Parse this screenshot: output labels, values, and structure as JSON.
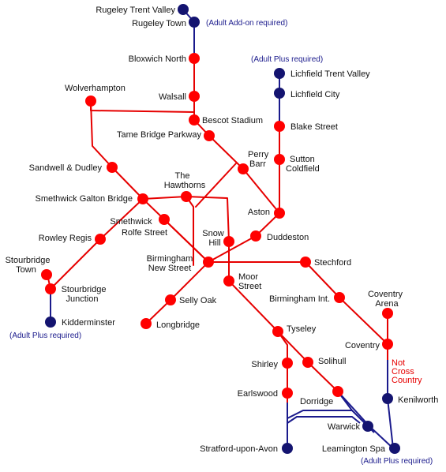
{
  "colors": {
    "red_line": "#e60000",
    "blue_line": "#1a1a8c",
    "red_station": "#ff0000",
    "blue_station": "#141470",
    "label": "#111111",
    "note": "#1a1a8c"
  },
  "stations": {
    "rugeley_trent_valley": "Rugeley Trent Valley",
    "rugeley_town": "Rugeley Town",
    "bloxwich_north": "Bloxwich North",
    "walsall": "Walsall",
    "wolverhampton": "Wolverhampton",
    "bescot_stadium": "Bescot Stadium",
    "tame_bridge_parkway": "Tame Bridge Parkway",
    "sandwell_dudley": "Sandwell & Dudley",
    "smethwick_galton_bridge": "Smethwick Galton Bridge",
    "the_hawthorns": [
      "The",
      "Hawthorns"
    ],
    "smethwick_rolfe_street": [
      "Smethwick",
      "Rolfe Street"
    ],
    "rowley_regis": "Rowley Regis",
    "stourbridge_town": [
      "Stourbridge",
      "Town"
    ],
    "stourbridge_junction": [
      "Stourbridge",
      "Junction"
    ],
    "kidderminster": "Kidderminster",
    "lichfield_trent_valley": "Lichfield Trent Valley",
    "lichfield_city": "Lichfield City",
    "blake_street": "Blake Street",
    "sutton_coldfield": [
      "Sutton",
      "Coldfield"
    ],
    "perry_barr": [
      "Perry",
      "Barr"
    ],
    "aston": "Aston",
    "duddeston": "Duddeston",
    "snow_hill": [
      "Snow",
      "Hill"
    ],
    "birmingham_new_street": [
      "Birmingham",
      "New Street"
    ],
    "stechford": "Stechford",
    "moor_street": [
      "Moor",
      "Street"
    ],
    "selly_oak": "Selly Oak",
    "longbridge": "Longbridge",
    "birmingham_international": "Birmingham Int.",
    "coventry_arena": [
      "Coventry",
      "Arena"
    ],
    "coventry": "Coventry",
    "tyseley": "Tyseley",
    "shirley": "Shirley",
    "solihull": "Solihull",
    "earlswood": "Earlswood",
    "dorridge": "Dorridge",
    "kenilworth": "Kenilworth",
    "warwick": "Warwick",
    "leamington_spa": "Leamington Spa",
    "stratford_upon_avon": "Stratford-upon-Avon"
  },
  "notes": {
    "adult_add_on": "(Adult Add-on required)",
    "adult_plus_lichfield": "(Adult Plus required)",
    "adult_plus_kidderminster": "(Adult Plus required)",
    "adult_plus_leamington": "(Adult Plus required)",
    "not_cross_country": [
      "Not",
      "Cross",
      "Country"
    ]
  }
}
